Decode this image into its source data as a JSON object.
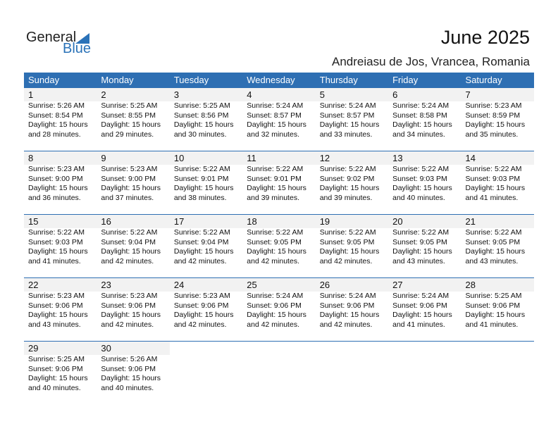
{
  "logo": {
    "text1": "General",
    "text2": "Blue",
    "accent": "#2a72b8"
  },
  "title": "June 2025",
  "location": "Andreiasu de Jos, Vrancea, Romania",
  "header_color": "#2e6fb3",
  "weekdays": [
    "Sunday",
    "Monday",
    "Tuesday",
    "Wednesday",
    "Thursday",
    "Friday",
    "Saturday"
  ],
  "days": [
    {
      "d": "1",
      "sunrise": "Sunrise: 5:26 AM",
      "sunset": "Sunset: 8:54 PM",
      "daylight": "Daylight: 15 hours",
      "minutes": "and 28 minutes."
    },
    {
      "d": "2",
      "sunrise": "Sunrise: 5:25 AM",
      "sunset": "Sunset: 8:55 PM",
      "daylight": "Daylight: 15 hours",
      "minutes": "and 29 minutes."
    },
    {
      "d": "3",
      "sunrise": "Sunrise: 5:25 AM",
      "sunset": "Sunset: 8:56 PM",
      "daylight": "Daylight: 15 hours",
      "minutes": "and 30 minutes."
    },
    {
      "d": "4",
      "sunrise": "Sunrise: 5:24 AM",
      "sunset": "Sunset: 8:57 PM",
      "daylight": "Daylight: 15 hours",
      "minutes": "and 32 minutes."
    },
    {
      "d": "5",
      "sunrise": "Sunrise: 5:24 AM",
      "sunset": "Sunset: 8:57 PM",
      "daylight": "Daylight: 15 hours",
      "minutes": "and 33 minutes."
    },
    {
      "d": "6",
      "sunrise": "Sunrise: 5:24 AM",
      "sunset": "Sunset: 8:58 PM",
      "daylight": "Daylight: 15 hours",
      "minutes": "and 34 minutes."
    },
    {
      "d": "7",
      "sunrise": "Sunrise: 5:23 AM",
      "sunset": "Sunset: 8:59 PM",
      "daylight": "Daylight: 15 hours",
      "minutes": "and 35 minutes."
    },
    {
      "d": "8",
      "sunrise": "Sunrise: 5:23 AM",
      "sunset": "Sunset: 9:00 PM",
      "daylight": "Daylight: 15 hours",
      "minutes": "and 36 minutes."
    },
    {
      "d": "9",
      "sunrise": "Sunrise: 5:23 AM",
      "sunset": "Sunset: 9:00 PM",
      "daylight": "Daylight: 15 hours",
      "minutes": "and 37 minutes."
    },
    {
      "d": "10",
      "sunrise": "Sunrise: 5:22 AM",
      "sunset": "Sunset: 9:01 PM",
      "daylight": "Daylight: 15 hours",
      "minutes": "and 38 minutes."
    },
    {
      "d": "11",
      "sunrise": "Sunrise: 5:22 AM",
      "sunset": "Sunset: 9:01 PM",
      "daylight": "Daylight: 15 hours",
      "minutes": "and 39 minutes."
    },
    {
      "d": "12",
      "sunrise": "Sunrise: 5:22 AM",
      "sunset": "Sunset: 9:02 PM",
      "daylight": "Daylight: 15 hours",
      "minutes": "and 39 minutes."
    },
    {
      "d": "13",
      "sunrise": "Sunrise: 5:22 AM",
      "sunset": "Sunset: 9:03 PM",
      "daylight": "Daylight: 15 hours",
      "minutes": "and 40 minutes."
    },
    {
      "d": "14",
      "sunrise": "Sunrise: 5:22 AM",
      "sunset": "Sunset: 9:03 PM",
      "daylight": "Daylight: 15 hours",
      "minutes": "and 41 minutes."
    },
    {
      "d": "15",
      "sunrise": "Sunrise: 5:22 AM",
      "sunset": "Sunset: 9:03 PM",
      "daylight": "Daylight: 15 hours",
      "minutes": "and 41 minutes."
    },
    {
      "d": "16",
      "sunrise": "Sunrise: 5:22 AM",
      "sunset": "Sunset: 9:04 PM",
      "daylight": "Daylight: 15 hours",
      "minutes": "and 42 minutes."
    },
    {
      "d": "17",
      "sunrise": "Sunrise: 5:22 AM",
      "sunset": "Sunset: 9:04 PM",
      "daylight": "Daylight: 15 hours",
      "minutes": "and 42 minutes."
    },
    {
      "d": "18",
      "sunrise": "Sunrise: 5:22 AM",
      "sunset": "Sunset: 9:05 PM",
      "daylight": "Daylight: 15 hours",
      "minutes": "and 42 minutes."
    },
    {
      "d": "19",
      "sunrise": "Sunrise: 5:22 AM",
      "sunset": "Sunset: 9:05 PM",
      "daylight": "Daylight: 15 hours",
      "minutes": "and 42 minutes."
    },
    {
      "d": "20",
      "sunrise": "Sunrise: 5:22 AM",
      "sunset": "Sunset: 9:05 PM",
      "daylight": "Daylight: 15 hours",
      "minutes": "and 43 minutes."
    },
    {
      "d": "21",
      "sunrise": "Sunrise: 5:22 AM",
      "sunset": "Sunset: 9:05 PM",
      "daylight": "Daylight: 15 hours",
      "minutes": "and 43 minutes."
    },
    {
      "d": "22",
      "sunrise": "Sunrise: 5:23 AM",
      "sunset": "Sunset: 9:06 PM",
      "daylight": "Daylight: 15 hours",
      "minutes": "and 43 minutes."
    },
    {
      "d": "23",
      "sunrise": "Sunrise: 5:23 AM",
      "sunset": "Sunset: 9:06 PM",
      "daylight": "Daylight: 15 hours",
      "minutes": "and 42 minutes."
    },
    {
      "d": "24",
      "sunrise": "Sunrise: 5:23 AM",
      "sunset": "Sunset: 9:06 PM",
      "daylight": "Daylight: 15 hours",
      "minutes": "and 42 minutes."
    },
    {
      "d": "25",
      "sunrise": "Sunrise: 5:24 AM",
      "sunset": "Sunset: 9:06 PM",
      "daylight": "Daylight: 15 hours",
      "minutes": "and 42 minutes."
    },
    {
      "d": "26",
      "sunrise": "Sunrise: 5:24 AM",
      "sunset": "Sunset: 9:06 PM",
      "daylight": "Daylight: 15 hours",
      "minutes": "and 42 minutes."
    },
    {
      "d": "27",
      "sunrise": "Sunrise: 5:24 AM",
      "sunset": "Sunset: 9:06 PM",
      "daylight": "Daylight: 15 hours",
      "minutes": "and 41 minutes."
    },
    {
      "d": "28",
      "sunrise": "Sunrise: 5:25 AM",
      "sunset": "Sunset: 9:06 PM",
      "daylight": "Daylight: 15 hours",
      "minutes": "and 41 minutes."
    },
    {
      "d": "29",
      "sunrise": "Sunrise: 5:25 AM",
      "sunset": "Sunset: 9:06 PM",
      "daylight": "Daylight: 15 hours",
      "minutes": "and 40 minutes."
    },
    {
      "d": "30",
      "sunrise": "Sunrise: 5:26 AM",
      "sunset": "Sunset: 9:06 PM",
      "daylight": "Daylight: 15 hours",
      "minutes": "and 40 minutes."
    }
  ]
}
